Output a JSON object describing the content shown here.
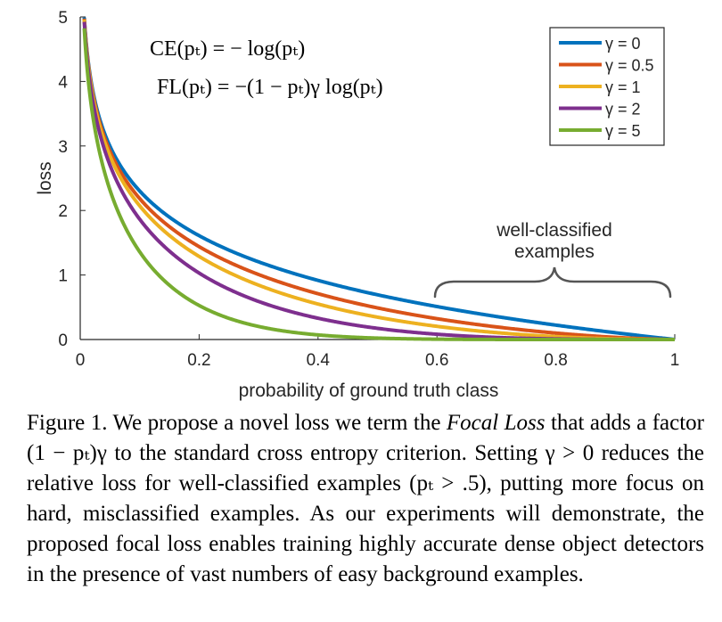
{
  "chart_data": {
    "type": "line",
    "xlabel": "probability of ground truth class",
    "ylabel": "loss",
    "xlim": [
      0,
      1
    ],
    "ylim": [
      0,
      5
    ],
    "xticks": [
      "0",
      "0.2",
      "0.4",
      "0.6",
      "0.8",
      "1"
    ],
    "yticks": [
      "0",
      "1",
      "2",
      "3",
      "4",
      "5"
    ],
    "formula_ce": "CE(pₜ) = − log(pₜ)",
    "formula_fl": "FL(pₜ) = −(1 − pₜ)γ log(pₜ)",
    "annotation": [
      "well-classified",
      "examples"
    ],
    "legend_position": "top-right",
    "x": [
      0.007,
      0.02,
      0.05,
      0.1,
      0.15,
      0.2,
      0.3,
      0.4,
      0.5,
      0.6,
      0.7,
      0.8,
      0.9,
      1.0
    ],
    "series": [
      {
        "name": "γ = 0",
        "color": "#0072BD",
        "values": [
          4.96,
          3.91,
          3.0,
          2.3,
          1.9,
          1.61,
          1.2,
          0.92,
          0.69,
          0.51,
          0.36,
          0.22,
          0.11,
          0.0
        ]
      },
      {
        "name": "γ = 0.5",
        "color": "#D95319",
        "values": [
          4.94,
          3.87,
          2.92,
          2.18,
          1.75,
          1.44,
          1.0,
          0.71,
          0.49,
          0.32,
          0.19,
          0.1,
          0.03,
          0.0
        ]
      },
      {
        "name": "γ = 1",
        "color": "#EDB120",
        "values": [
          4.93,
          3.83,
          2.85,
          2.07,
          1.61,
          1.29,
          0.84,
          0.55,
          0.35,
          0.2,
          0.11,
          0.04,
          0.01,
          0.0
        ]
      },
      {
        "name": "γ = 2",
        "color": "#7E2F8E",
        "values": [
          4.89,
          3.76,
          2.71,
          1.87,
          1.37,
          1.03,
          0.59,
          0.33,
          0.17,
          0.08,
          0.03,
          0.01,
          0.0,
          0.0
        ]
      },
      {
        "name": "γ = 5",
        "color": "#77AC30",
        "values": [
          4.79,
          3.53,
          2.32,
          1.36,
          0.85,
          0.53,
          0.2,
          0.07,
          0.02,
          0.01,
          0.0,
          0.0,
          0.0,
          0.0
        ]
      }
    ]
  },
  "caption": {
    "part1": "Figure 1. We propose a novel loss we term the ",
    "emph": "Focal Loss",
    "part2": " that adds a factor (1 − pₜ)γ to the standard cross entropy criterion. Setting γ > 0 reduces the relative loss for well-classified examples (pₜ > .5), putting more focus on hard, misclassified examples. As our experiments will demonstrate, the proposed focal loss enables training highly accurate dense object detectors in the presence of vast numbers of easy background examples."
  }
}
